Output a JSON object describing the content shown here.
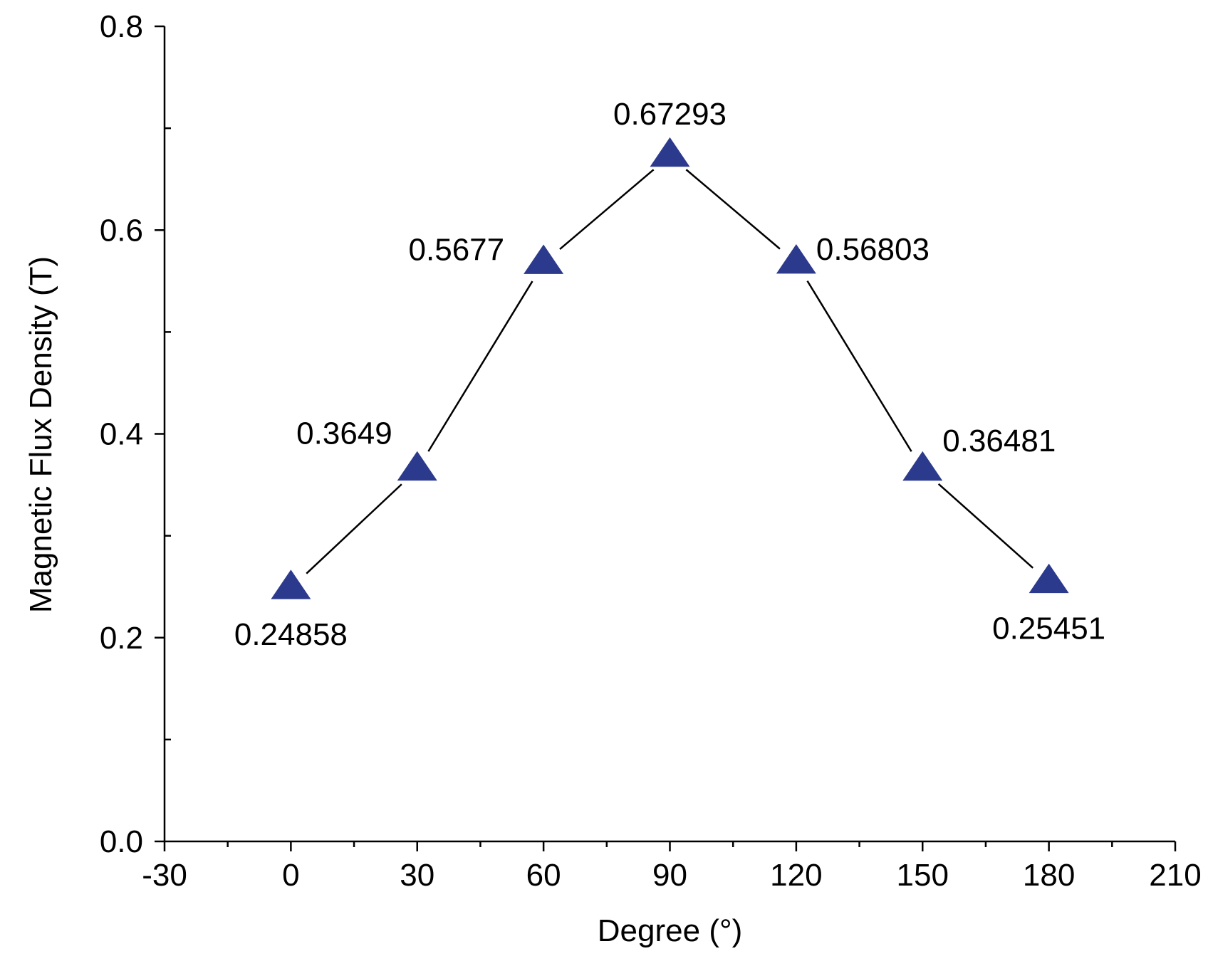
{
  "chart_data": {
    "type": "line",
    "title": "",
    "xlabel": "Degree (°)",
    "ylabel": "Magnetic Flux Density (T)",
    "xlim": [
      -30,
      210
    ],
    "ylim": [
      0.0,
      0.8
    ],
    "x_ticks": [
      -30,
      0,
      30,
      60,
      90,
      120,
      150,
      180,
      210
    ],
    "x_tick_labels": [
      "-30",
      "0",
      "30",
      "60",
      "90",
      "120",
      "150",
      "180",
      "210"
    ],
    "x_minor_ticks": [
      -15,
      15,
      45,
      75,
      105,
      135,
      165,
      195
    ],
    "y_ticks": [
      0.0,
      0.2,
      0.4,
      0.6,
      0.8
    ],
    "y_tick_labels": [
      "0.0",
      "0.2",
      "0.4",
      "0.6",
      "0.8"
    ],
    "y_minor_ticks": [
      0.1,
      0.3,
      0.5,
      0.7
    ],
    "grid": false,
    "legend": "none",
    "marker": "triangle",
    "marker_color": "#2b3a8c",
    "line_color": "#000000",
    "series": [
      {
        "x": [
          0,
          30,
          60,
          90,
          120,
          150,
          180
        ],
        "y": [
          0.24858,
          0.3649,
          0.5677,
          0.67293,
          0.56803,
          0.36481,
          0.25451
        ],
        "labels": [
          "0.24858",
          "0.3649",
          "0.5677",
          "0.67293",
          "0.56803",
          "0.36481",
          "0.25451"
        ],
        "label_positions": [
          "below",
          "above-left",
          "left",
          "above",
          "right",
          "above-right",
          "below"
        ]
      }
    ]
  }
}
